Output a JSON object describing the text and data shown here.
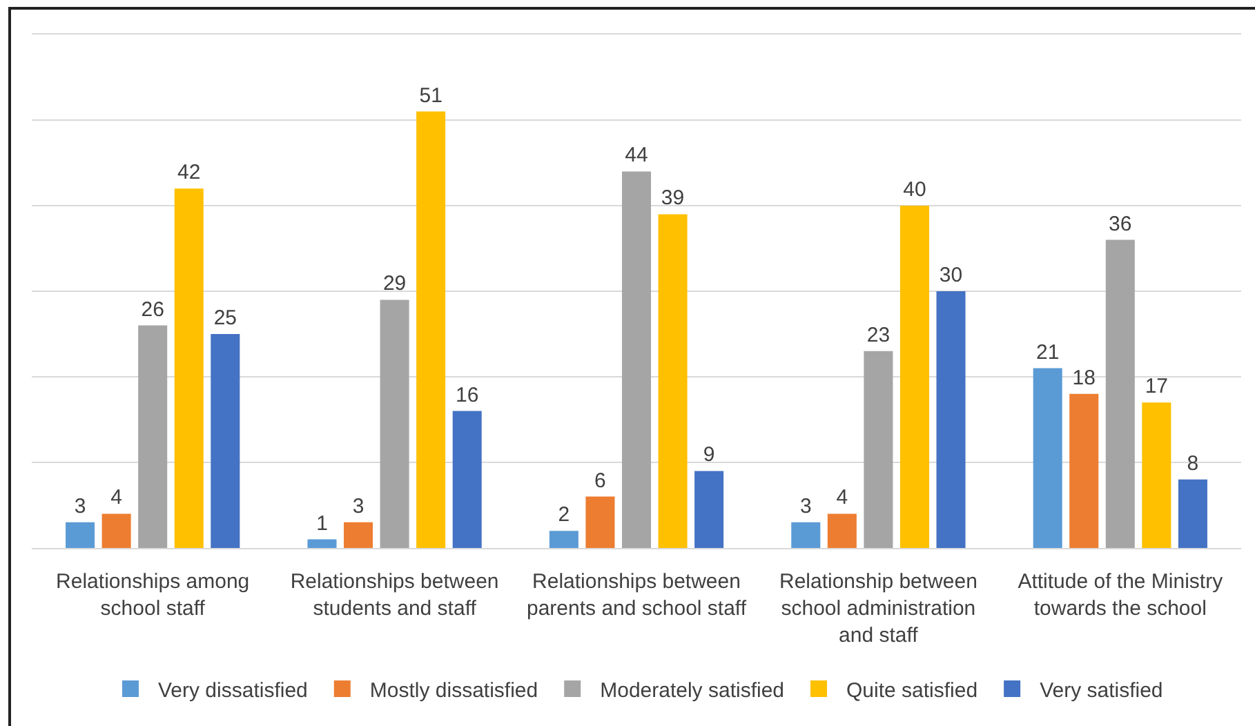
{
  "chart_data": {
    "type": "bar",
    "categories": [
      "Relationships among school staff",
      "Relationships between students and staff",
      "Relationships between parents and school staff",
      "Relationship between school administration and staff",
      "Attitude of the Ministry towards the school"
    ],
    "series": [
      {
        "name": "Very dissatisfied",
        "color": "#5b9bd5",
        "values": [
          3,
          1,
          2,
          3,
          21
        ]
      },
      {
        "name": "Mostly dissatisfied",
        "color": "#ed7d31",
        "values": [
          4,
          3,
          6,
          4,
          18
        ]
      },
      {
        "name": "Moderately satisfied",
        "color": "#a5a5a5",
        "values": [
          26,
          29,
          44,
          23,
          36
        ]
      },
      {
        "name": "Quite satisfied",
        "color": "#ffc000",
        "values": [
          42,
          51,
          39,
          40,
          17
        ]
      },
      {
        "name": "Very satisfied",
        "color": "#4472c4",
        "values": [
          25,
          16,
          9,
          30,
          8
        ]
      }
    ],
    "ylim": [
      0,
      60
    ],
    "yticks": [
      {
        "value": 0,
        "label": null
      },
      {
        "value": 10,
        "label": null
      },
      {
        "value": 20,
        "label": null
      },
      {
        "value": 30,
        "label": null
      },
      {
        "value": 40,
        "label": null
      },
      {
        "value": 50,
        "label": null
      },
      {
        "value": 60,
        "label": null
      }
    ],
    "grid": "y",
    "legend": "bottom",
    "tick_labels": "x",
    "data_labels": true
  }
}
